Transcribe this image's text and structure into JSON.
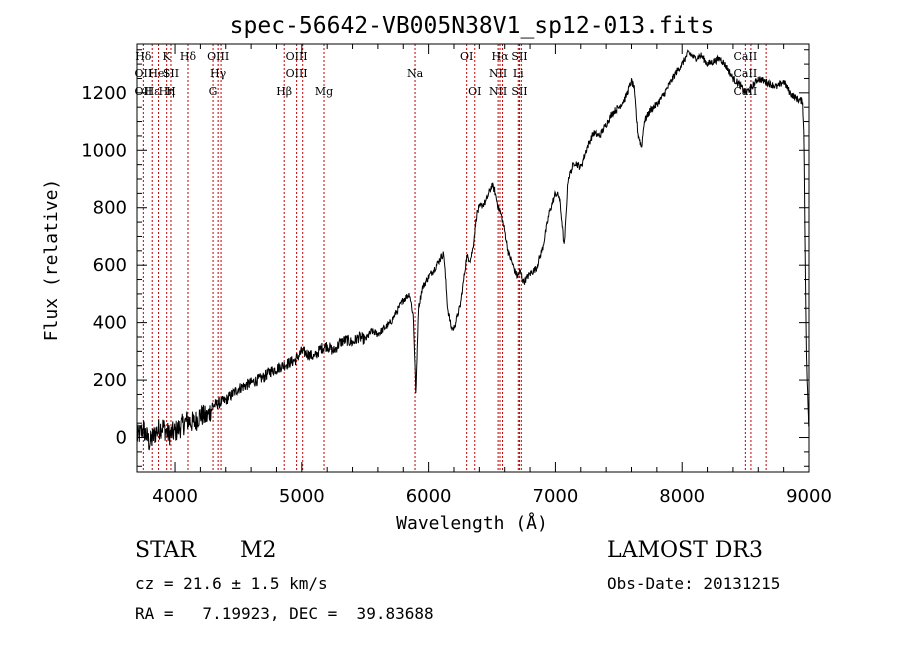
{
  "chart_data": {
    "type": "line",
    "title": "spec-56642-VB005N38V1_sp12-013.fits",
    "xlabel": "Wavelength (Å)",
    "ylabel": "Flux (relative)",
    "xlim": [
      3700,
      9000
    ],
    "ylim": [
      -120,
      1370
    ],
    "x_ticks": [
      4000,
      5000,
      6000,
      7000,
      8000,
      9000
    ],
    "y_ticks": [
      0,
      200,
      400,
      600,
      800,
      1000,
      1200
    ],
    "grid": false,
    "series": [
      {
        "name": "spectrum",
        "x": [
          3700,
          3750,
          3800,
          3850,
          3900,
          3950,
          4000,
          4050,
          4100,
          4150,
          4200,
          4250,
          4300,
          4350,
          4400,
          4450,
          4500,
          4550,
          4600,
          4650,
          4700,
          4750,
          4800,
          4850,
          4900,
          4950,
          5000,
          5050,
          5100,
          5150,
          5200,
          5250,
          5300,
          5350,
          5400,
          5450,
          5500,
          5550,
          5600,
          5650,
          5700,
          5750,
          5800,
          5850,
          5880,
          5900,
          5920,
          5950,
          6000,
          6050,
          6100,
          6120,
          6150,
          6180,
          6200,
          6250,
          6280,
          6300,
          6330,
          6350,
          6380,
          6400,
          6450,
          6500,
          6520,
          6550,
          6570,
          6600,
          6630,
          6650,
          6680,
          6700,
          6720,
          6750,
          6780,
          6800,
          6850,
          6900,
          6950,
          7000,
          7030,
          7050,
          7070,
          7100,
          7150,
          7200,
          7250,
          7300,
          7350,
          7400,
          7450,
          7500,
          7550,
          7600,
          7620,
          7650,
          7680,
          7700,
          7750,
          7800,
          7850,
          7900,
          7950,
          8000,
          8050,
          8100,
          8150,
          8200,
          8250,
          8300,
          8350,
          8400,
          8450,
          8500,
          8550,
          8600,
          8650,
          8700,
          8750,
          8800,
          8850,
          8900,
          8950,
          8960,
          8970,
          8980,
          8990,
          9000
        ],
        "y": [
          0,
          30,
          -20,
          20,
          40,
          10,
          20,
          40,
          60,
          50,
          80,
          70,
          110,
          120,
          130,
          150,
          170,
          180,
          190,
          200,
          210,
          230,
          240,
          250,
          260,
          270,
          300,
          290,
          280,
          310,
          320,
          300,
          330,
          340,
          330,
          350,
          340,
          370,
          360,
          380,
          400,
          440,
          480,
          500,
          420,
          150,
          450,
          520,
          560,
          590,
          630,
          640,
          450,
          380,
          380,
          460,
          560,
          630,
          620,
          660,
          780,
          800,
          820,
          880,
          860,
          800,
          780,
          720,
          640,
          620,
          580,
          560,
          580,
          540,
          560,
          570,
          590,
          660,
          780,
          850,
          840,
          760,
          660,
          900,
          960,
          940,
          1010,
          1060,
          1050,
          1090,
          1130,
          1150,
          1180,
          1240,
          1220,
          1060,
          1010,
          1100,
          1140,
          1160,
          1190,
          1230,
          1270,
          1300,
          1340,
          1320,
          1330,
          1300,
          1310,
          1320,
          1290,
          1250,
          1230,
          1200,
          1220,
          1250,
          1240,
          1230,
          1220,
          1240,
          1200,
          1180,
          1170,
          1050,
          650,
          280,
          150,
          0
        ]
      }
    ],
    "lines": [
      {
        "x": 3750,
        "labels": [
          "Hδ",
          "OII",
          "OII"
        ]
      },
      {
        "x": 3820,
        "labels": [
          "",
          "",
          "Hε"
        ]
      },
      {
        "x": 3870,
        "labels": [
          "",
          "HeI",
          ""
        ]
      },
      {
        "x": 3934,
        "labels": [
          "K",
          "",
          "Hη"
        ]
      },
      {
        "x": 3968,
        "labels": [
          "",
          "SII",
          "H"
        ]
      },
      {
        "x": 4102,
        "labels": [
          "Hδ",
          "",
          ""
        ]
      },
      {
        "x": 4300,
        "labels": [
          "",
          "",
          "G"
        ]
      },
      {
        "x": 4340,
        "labels": [
          "OIII",
          "Hγ",
          ""
        ]
      },
      {
        "x": 4363,
        "labels": [
          "",
          "",
          ""
        ]
      },
      {
        "x": 4861,
        "labels": [
          "",
          "",
          "Hβ"
        ]
      },
      {
        "x": 4959,
        "labels": [
          "OIII",
          "OIII",
          ""
        ]
      },
      {
        "x": 5007,
        "labels": [
          "",
          "",
          ""
        ]
      },
      {
        "x": 5175,
        "labels": [
          "",
          "",
          "Mg"
        ]
      },
      {
        "x": 5893,
        "labels": [
          "",
          "Na",
          ""
        ]
      },
      {
        "x": 6300,
        "labels": [
          "OI",
          "",
          ""
        ]
      },
      {
        "x": 6364,
        "labels": [
          "",
          "",
          "OI"
        ]
      },
      {
        "x": 6548,
        "labels": [
          "",
          "NII",
          "NII"
        ]
      },
      {
        "x": 6563,
        "labels": [
          "Hα",
          "",
          ""
        ]
      },
      {
        "x": 6583,
        "labels": [
          "",
          "",
          ""
        ]
      },
      {
        "x": 6707,
        "labels": [
          "",
          "Li",
          ""
        ]
      },
      {
        "x": 6717,
        "labels": [
          "SII",
          "",
          "SII"
        ]
      },
      {
        "x": 6731,
        "labels": [
          "",
          "",
          ""
        ]
      },
      {
        "x": 8498,
        "labels": [
          "CaII",
          "CaII",
          "CaII"
        ]
      },
      {
        "x": 8542,
        "labels": [
          "",
          "",
          ""
        ]
      },
      {
        "x": 8662,
        "labels": [
          "",
          "",
          ""
        ]
      }
    ]
  },
  "info": {
    "object_class": "STAR",
    "subclass": "M2",
    "survey": "LAMOST DR3",
    "redshift_line": "cz = 21.6 ± 1.5 km/s",
    "obs_date_line": "Obs-Date: 20131215",
    "coords_line": "RA =   7.19923, DEC =  39.83688"
  }
}
